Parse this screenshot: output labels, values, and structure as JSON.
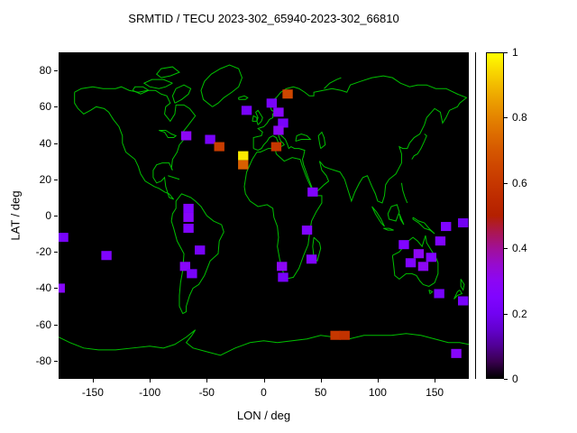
{
  "chart_data": {
    "type": "heatmap",
    "title": "SRMTID / TECU 2023-302_65940-2023-302_66810",
    "xlabel": "LON / deg",
    "ylabel": "LAT / deg",
    "xlim": [
      -180,
      180
    ],
    "ylim": [
      -90,
      90
    ],
    "xticks": [
      -150,
      -100,
      -50,
      0,
      50,
      100,
      150
    ],
    "yticks": [
      80,
      60,
      40,
      20,
      0,
      -20,
      -40,
      -60,
      -80
    ],
    "grid": false,
    "plot_background": "#000000",
    "coastline_color": "#00c000",
    "colorbar": {
      "min": 0,
      "max": 1,
      "ticks": [
        0,
        0.2,
        0.4,
        0.6,
        0.8,
        1
      ],
      "position": "right",
      "palette": "gnuplot-pm3d-black-violet-red-orange-yellow"
    },
    "cell_deg": {
      "lon": 9,
      "lat": 5
    },
    "points": [
      {
        "lon": 21,
        "lat": 67,
        "value": 0.65
      },
      {
        "lon": 7,
        "lat": 62,
        "value": 0.22
      },
      {
        "lon": -15,
        "lat": 58,
        "value": 0.22
      },
      {
        "lon": 13,
        "lat": 57,
        "value": 0.28
      },
      {
        "lon": 17,
        "lat": 51,
        "value": 0.22
      },
      {
        "lon": 13,
        "lat": 47,
        "value": 0.3
      },
      {
        "lon": -68,
        "lat": 44,
        "value": 0.3
      },
      {
        "lon": -47,
        "lat": 42,
        "value": 0.22
      },
      {
        "lon": -39,
        "lat": 38,
        "value": 0.62
      },
      {
        "lon": 11,
        "lat": 38,
        "value": 0.6
      },
      {
        "lon": -18,
        "lat": 33,
        "value": 0.97
      },
      {
        "lon": -18,
        "lat": 28,
        "value": 0.72
      },
      {
        "lon": 43,
        "lat": 13,
        "value": 0.25
      },
      {
        "lon": -66,
        "lat": 4,
        "value": 0.25
      },
      {
        "lon": -66,
        "lat": -1,
        "value": 0.28
      },
      {
        "lon": -66,
        "lat": -7,
        "value": 0.25
      },
      {
        "lon": 38,
        "lat": -8,
        "value": 0.25
      },
      {
        "lon": -176,
        "lat": -12,
        "value": 0.22
      },
      {
        "lon": -138,
        "lat": -22,
        "value": 0.25
      },
      {
        "lon": -56,
        "lat": -19,
        "value": 0.22
      },
      {
        "lon": -69,
        "lat": -28,
        "value": 0.28
      },
      {
        "lon": -63,
        "lat": -32,
        "value": 0.22
      },
      {
        "lon": 16,
        "lat": -28,
        "value": 0.3
      },
      {
        "lon": 17,
        "lat": -34,
        "value": 0.22
      },
      {
        "lon": 42,
        "lat": -24,
        "value": 0.25
      },
      {
        "lon": 123,
        "lat": -16,
        "value": 0.25
      },
      {
        "lon": 155,
        "lat": -14,
        "value": 0.25
      },
      {
        "lon": 136,
        "lat": -21,
        "value": 0.3
      },
      {
        "lon": 147,
        "lat": -23,
        "value": 0.25
      },
      {
        "lon": 129,
        "lat": -26,
        "value": 0.25
      },
      {
        "lon": 140,
        "lat": -28,
        "value": 0.3
      },
      {
        "lon": 160,
        "lat": -6,
        "value": 0.25
      },
      {
        "lon": 175,
        "lat": -4,
        "value": 0.2
      },
      {
        "lon": -179,
        "lat": -40,
        "value": 0.28
      },
      {
        "lon": 154,
        "lat": -43,
        "value": 0.22
      },
      {
        "lon": 175,
        "lat": -47,
        "value": 0.22
      },
      {
        "lon": 63,
        "lat": -66,
        "value": 0.6
      },
      {
        "lon": 71,
        "lat": -66,
        "value": 0.58
      },
      {
        "lon": 169,
        "lat": -76,
        "value": 0.28
      }
    ]
  }
}
